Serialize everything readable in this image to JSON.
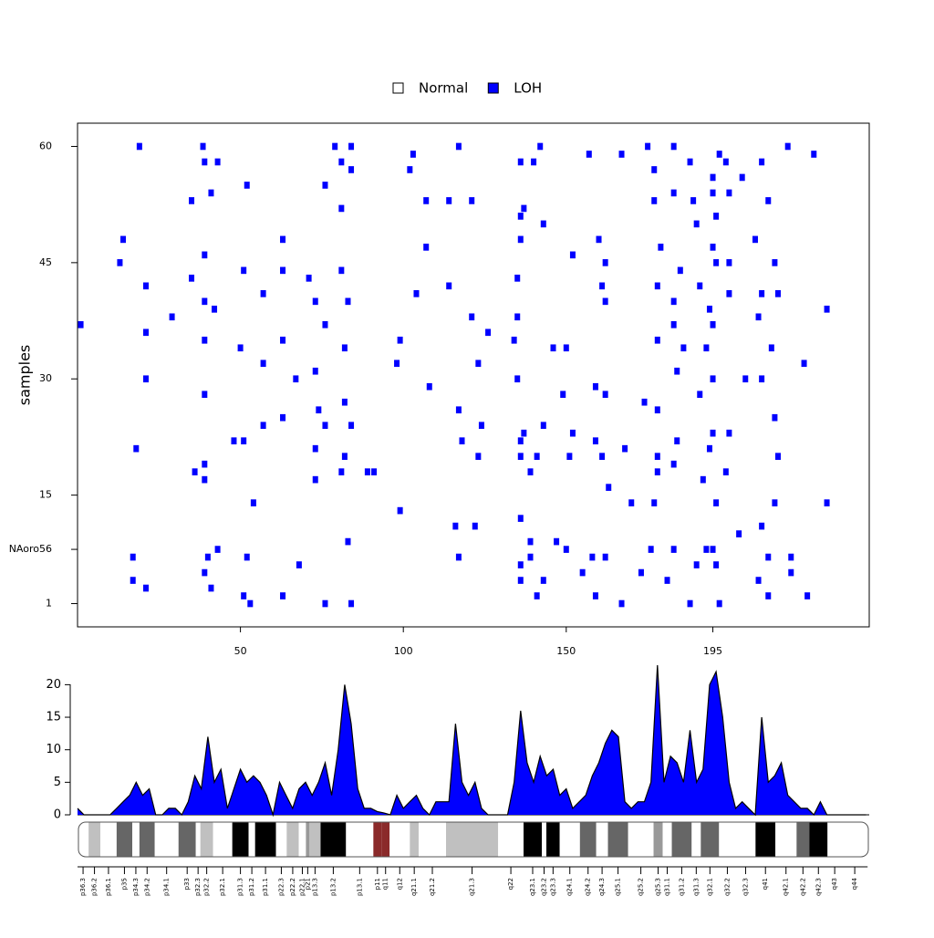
{
  "chart_data": [
    {
      "type": "tile",
      "y_label": "samples",
      "series": [
        {
          "name": "Normal",
          "color": "#ffffff",
          "x": [],
          "values": []
        },
        {
          "name": "LOH",
          "color": "#0000ff",
          "x": [
            19,
            38.5,
            79,
            84,
            103,
            117,
            142,
            157,
            167,
            175,
            183,
            197,
            218,
            226,
            39,
            43,
            81,
            102,
            136,
            140,
            188,
            199,
            210,
            84,
            177,
            195,
            204,
            35,
            41,
            52,
            76,
            81,
            107,
            114,
            121,
            137,
            136,
            143,
            177,
            183,
            189,
            195,
            200,
            212,
            190,
            196,
            14,
            63,
            107,
            136,
            160,
            179,
            195,
            208,
            13,
            39,
            51,
            63,
            81,
            152,
            162,
            185,
            196,
            200,
            214,
            21,
            35,
            57,
            71,
            104,
            114,
            135,
            161,
            178,
            191,
            200,
            215,
            39,
            73,
            83,
            162,
            183,
            194,
            210,
            29,
            42,
            121,
            135,
            195,
            209,
            230,
            1,
            21,
            76,
            126,
            134,
            183,
            186,
            193,
            39,
            50,
            63,
            99,
            82,
            146,
            150,
            178,
            213,
            57,
            98,
            123,
            223,
            21,
            67,
            73,
            108,
            135,
            159,
            184,
            195,
            205,
            210,
            39,
            82,
            149,
            162,
            174,
            191,
            63,
            74,
            117,
            143,
            178,
            214,
            57,
            76,
            84,
            118,
            124,
            137,
            152,
            195,
            200,
            48,
            73,
            136,
            159,
            168,
            184,
            194,
            18,
            51,
            82,
            123,
            136,
            141,
            151,
            161,
            178,
            215,
            39,
            73,
            39,
            36,
            81,
            89,
            91,
            139,
            163,
            183,
            192,
            199,
            178,
            99,
            116,
            122,
            136,
            170,
            177,
            196,
            214,
            230,
            54,
            83,
            139,
            147,
            158,
            162,
            176,
            183,
            195,
            193,
            203,
            210,
            17,
            40,
            43,
            52,
            68,
            117,
            136,
            139,
            150,
            190,
            196,
            212,
            219,
            17,
            21,
            39,
            41,
            136,
            143,
            155,
            173,
            181,
            209,
            219,
            51,
            63,
            76,
            84,
            141,
            159,
            167,
            188,
            197,
            212,
            224,
            53
          ],
          "values": [
            60,
            60,
            60,
            60,
            59,
            60,
            60,
            59,
            59,
            60,
            60,
            59,
            60,
            59,
            58,
            58,
            58,
            57,
            58,
            58,
            58,
            58,
            58,
            57,
            57,
            56,
            56,
            53,
            54,
            55,
            55,
            52,
            53,
            53,
            53,
            52,
            51,
            50,
            53,
            54,
            53,
            54,
            54,
            53,
            50,
            51,
            48,
            48,
            47,
            48,
            48,
            47,
            47,
            48,
            45,
            46,
            44,
            44,
            44,
            46,
            45,
            44,
            45,
            45,
            45,
            42,
            43,
            41,
            43,
            41,
            42,
            43,
            42,
            42,
            42,
            41,
            41,
            40,
            40,
            40,
            40,
            40,
            39,
            41,
            38,
            39,
            38,
            38,
            37,
            38,
            39,
            37,
            36,
            37,
            36,
            35,
            37,
            34,
            34,
            35,
            34,
            35,
            35,
            34,
            34,
            34,
            35,
            34,
            32,
            32,
            32,
            32,
            30,
            30,
            31,
            29,
            30,
            29,
            31,
            30,
            30,
            30,
            28,
            27,
            28,
            28,
            27,
            28,
            25,
            26,
            26,
            24,
            26,
            25,
            24,
            24,
            24,
            22,
            24,
            23,
            23,
            23,
            23,
            22,
            21,
            22,
            22,
            21,
            22,
            21,
            21,
            22,
            20,
            20,
            20,
            20,
            20,
            20,
            20,
            20,
            19,
            17,
            17,
            18,
            18,
            18,
            18,
            18,
            16,
            19,
            17,
            18,
            18,
            13,
            11,
            11,
            12,
            14,
            14,
            14,
            14,
            14,
            14,
            9,
            9,
            9,
            7,
            7,
            8,
            8,
            8,
            8,
            10,
            11,
            7,
            7,
            8,
            7,
            6,
            7,
            6,
            7,
            8,
            6,
            6,
            7,
            7,
            4,
            3,
            5,
            3,
            4,
            4,
            5,
            5,
            4,
            4,
            5,
            2,
            2,
            1,
            1,
            2,
            2,
            1,
            1,
            1,
            2,
            2,
            1
          ]
        }
      ],
      "xlim": [
        0,
        243
      ],
      "xticks": [
        50,
        100,
        150,
        195
      ],
      "ylim": [
        -2,
        63
      ],
      "yticks": [
        1,
        {
          "value": 8,
          "label": "NAoro56"
        },
        15,
        30,
        45,
        60
      ]
    },
    {
      "type": "area",
      "color": "#0000ff",
      "x": [
        0,
        2,
        4,
        6,
        8,
        10,
        12,
        14,
        16,
        18,
        20,
        22,
        24,
        26,
        28,
        30,
        32,
        34,
        36,
        38,
        40,
        42,
        44,
        46,
        48,
        50,
        52,
        54,
        56,
        58,
        60,
        62,
        64,
        66,
        68,
        70,
        72,
        74,
        76,
        78,
        80,
        82,
        84,
        86,
        88,
        90,
        92,
        94,
        96,
        98,
        100,
        102,
        104,
        106,
        108,
        110,
        112,
        114,
        116,
        118,
        120,
        122,
        124,
        126,
        128,
        130,
        132,
        134,
        136,
        138,
        140,
        142,
        144,
        146,
        148,
        150,
        152,
        154,
        156,
        158,
        160,
        162,
        164,
        166,
        168,
        170,
        172,
        174,
        176,
        178,
        180,
        182,
        184,
        186,
        188,
        190,
        192,
        194,
        196,
        198,
        200,
        202,
        204,
        206,
        208,
        210,
        212,
        214,
        216,
        218,
        220,
        222,
        224,
        226,
        228,
        230,
        232,
        234,
        236,
        238,
        240,
        242
      ],
      "values": [
        1,
        0,
        0,
        0,
        0,
        0,
        1,
        2,
        3,
        5,
        3,
        4,
        0,
        0,
        1,
        1,
        0,
        2,
        6,
        4,
        12,
        5,
        7,
        1,
        4,
        7,
        5,
        6,
        5,
        3,
        0,
        5,
        3,
        1,
        4,
        5,
        3,
        5,
        8,
        3,
        10,
        20,
        14,
        4,
        1,
        1,
        0.5,
        0.3,
        0,
        3,
        1,
        2,
        3,
        1,
        0,
        2,
        2,
        2,
        14,
        5,
        3,
        5,
        1,
        0,
        0,
        0,
        0,
        5,
        16,
        8,
        5,
        9,
        6,
        7,
        3,
        4,
        1,
        2,
        3,
        6,
        8,
        11,
        13,
        12,
        2,
        1,
        2,
        2,
        5,
        23,
        5,
        9,
        8,
        5,
        13,
        5,
        7,
        20,
        22,
        15,
        5,
        1,
        2,
        1,
        0,
        15,
        5,
        6,
        8,
        3,
        2,
        1,
        1,
        0,
        2,
        0,
        0,
        0,
        0,
        0,
        0,
        0
      ],
      "xlim": [
        0,
        243
      ],
      "ylim": [
        0,
        23
      ],
      "yticks": [
        0,
        5,
        10,
        15,
        20
      ]
    },
    {
      "type": "ideogram",
      "xlim": [
        0,
        243
      ],
      "bands": [
        {
          "name": "p36.3",
          "start": 0,
          "end": 3.4,
          "stain": "gneg"
        },
        {
          "name": "p36.2",
          "start": 3.4,
          "end": 7.0,
          "stain": "gpos25"
        },
        {
          "name": "p36.1",
          "start": 7.0,
          "end": 12.0,
          "stain": "gneg"
        },
        {
          "name": "p35",
          "start": 12.0,
          "end": 16.8,
          "stain": "gpos75"
        },
        {
          "name": "p34.3",
          "start": 16.8,
          "end": 19.0,
          "stain": "gneg"
        },
        {
          "name": "p34.2",
          "start": 19.0,
          "end": 23.7,
          "stain": "gpos75"
        },
        {
          "name": "p34.1",
          "start": 23.7,
          "end": 31.0,
          "stain": "gneg"
        },
        {
          "name": "p33",
          "start": 31.0,
          "end": 36.3,
          "stain": "gpos75"
        },
        {
          "name": "p32.3",
          "start": 36.3,
          "end": 37.7,
          "stain": "gneg"
        },
        {
          "name": "p32.2",
          "start": 37.7,
          "end": 41.6,
          "stain": "gpos25"
        },
        {
          "name": "p32.1",
          "start": 41.6,
          "end": 47.5,
          "stain": "gneg"
        },
        {
          "name": "p31.3",
          "start": 47.5,
          "end": 52.5,
          "stain": "gpos100"
        },
        {
          "name": "p31.2",
          "start": 52.5,
          "end": 54.5,
          "stain": "gneg"
        },
        {
          "name": "p31.1",
          "start": 54.5,
          "end": 60.9,
          "stain": "gpos100"
        },
        {
          "name": "p22.3",
          "start": 60.9,
          "end": 64.2,
          "stain": "gneg"
        },
        {
          "name": "p22.2",
          "start": 64.2,
          "end": 67.9,
          "stain": "gpos25"
        },
        {
          "name": "p22.1",
          "start": 67.9,
          "end": 70.1,
          "stain": "gneg"
        },
        {
          "name": "p21",
          "start": 70.1,
          "end": 71.2,
          "stain": "gpos50"
        },
        {
          "name": "p13.3",
          "start": 71.2,
          "end": 74.6,
          "stain": "gpos25"
        },
        {
          "name": "p13.2",
          "start": 74.6,
          "end": 82.4,
          "stain": "gpos100"
        },
        {
          "name": "p13.1",
          "start": 82.4,
          "end": 90.8,
          "stain": "gneg"
        },
        {
          "name": "p11",
          "start": 90.8,
          "end": 93.3,
          "stain": "acen"
        },
        {
          "name": "q11",
          "start": 93.3,
          "end": 95.8,
          "stain": "acen"
        },
        {
          "name": "q12",
          "start": 95.8,
          "end": 102.0,
          "stain": "gneg"
        },
        {
          "name": "q21.1",
          "start": 102.0,
          "end": 104.7,
          "stain": "gpos25"
        },
        {
          "name": "q21.2",
          "start": 104.7,
          "end": 113.1,
          "stain": "gneg"
        },
        {
          "name": "q21.3",
          "start": 113.1,
          "end": 129.1,
          "stain": "gpos25"
        },
        {
          "name": "q22",
          "start": 129.1,
          "end": 136.9,
          "stain": "gneg"
        },
        {
          "name": "q23.1",
          "start": 136.9,
          "end": 142.5,
          "stain": "gpos100"
        },
        {
          "name": "q23.2",
          "start": 142.5,
          "end": 143.9,
          "stain": "gneg"
        },
        {
          "name": "q23.3",
          "start": 143.9,
          "end": 148.0,
          "stain": "gpos100"
        },
        {
          "name": "q24.1",
          "start": 148.0,
          "end": 154.2,
          "stain": "gneg"
        },
        {
          "name": "q24.2",
          "start": 154.2,
          "end": 159.2,
          "stain": "gpos75"
        },
        {
          "name": "q24.3",
          "start": 159.2,
          "end": 162.8,
          "stain": "gneg"
        },
        {
          "name": "q25.1",
          "start": 162.8,
          "end": 169.0,
          "stain": "gpos75"
        },
        {
          "name": "q25.2",
          "start": 169.0,
          "end": 176.8,
          "stain": "gneg"
        },
        {
          "name": "q25.3",
          "start": 176.8,
          "end": 179.6,
          "stain": "gpos50"
        },
        {
          "name": "q31.1",
          "start": 179.6,
          "end": 182.4,
          "stain": "gneg"
        },
        {
          "name": "q31.2",
          "start": 182.4,
          "end": 188.5,
          "stain": "gpos75"
        },
        {
          "name": "q31.3",
          "start": 188.5,
          "end": 191.3,
          "stain": "gneg"
        },
        {
          "name": "q32.1",
          "start": 191.3,
          "end": 196.9,
          "stain": "gpos75"
        },
        {
          "name": "q32.2",
          "start": 196.9,
          "end": 202.0,
          "stain": "gneg"
        },
        {
          "name": "q32.3",
          "start": 202.0,
          "end": 208.1,
          "stain": "gneg"
        },
        {
          "name": "q41",
          "start": 208.1,
          "end": 214.2,
          "stain": "gpos100"
        },
        {
          "name": "q42.1",
          "start": 214.2,
          "end": 220.7,
          "stain": "gneg"
        },
        {
          "name": "q42.2",
          "start": 220.7,
          "end": 224.6,
          "stain": "gpos75"
        },
        {
          "name": "q42.3",
          "start": 224.6,
          "end": 230.2,
          "stain": "gpos100"
        },
        {
          "name": "q43",
          "start": 230.2,
          "end": 234.6,
          "stain": "gneg"
        },
        {
          "name": "q44",
          "start": 234.6,
          "end": 242.5,
          "stain": "gneg"
        }
      ]
    }
  ]
}
